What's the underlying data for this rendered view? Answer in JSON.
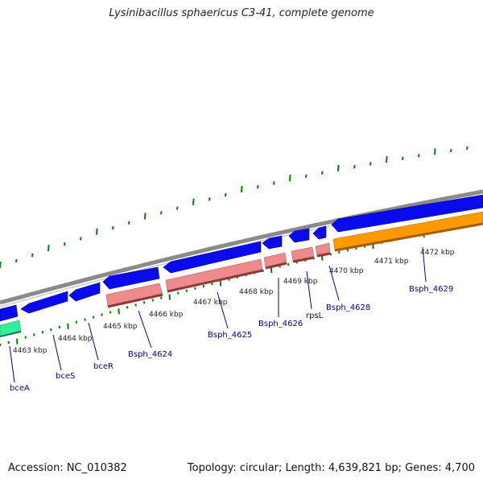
{
  "title": "Lysinibacillus sphaericus C3-41, complete genome",
  "footer": {
    "accession": "Accession: NC_010382",
    "topology": "Topology: circular; Length: 4,639,821 bp; Genes: 4,700"
  },
  "colors": {
    "backbone": "#8a8a8a",
    "forward_cds": "#0a0aee",
    "reverse_cds": "#ee8a8a",
    "orange_feature": "#ff9900",
    "green_feature": "#33ee99",
    "tick": "#0b7a0b",
    "gene_label": "#00008b"
  },
  "kbp_ticks": [
    "4463 kbp",
    "4464 kbp",
    "4465 kbp",
    "4466 kbp",
    "4467 kbp",
    "4468 kbp",
    "4469 kbp",
    "4470 kbp",
    "4471 kbp",
    "4472 kbp"
  ],
  "genes": [
    "bceA",
    "bceS",
    "bceR",
    "Bsph_4624",
    "Bsph_4625",
    "Bsph_4626",
    "rpsL",
    "Bsph_4628",
    "Bsph_4629"
  ]
}
